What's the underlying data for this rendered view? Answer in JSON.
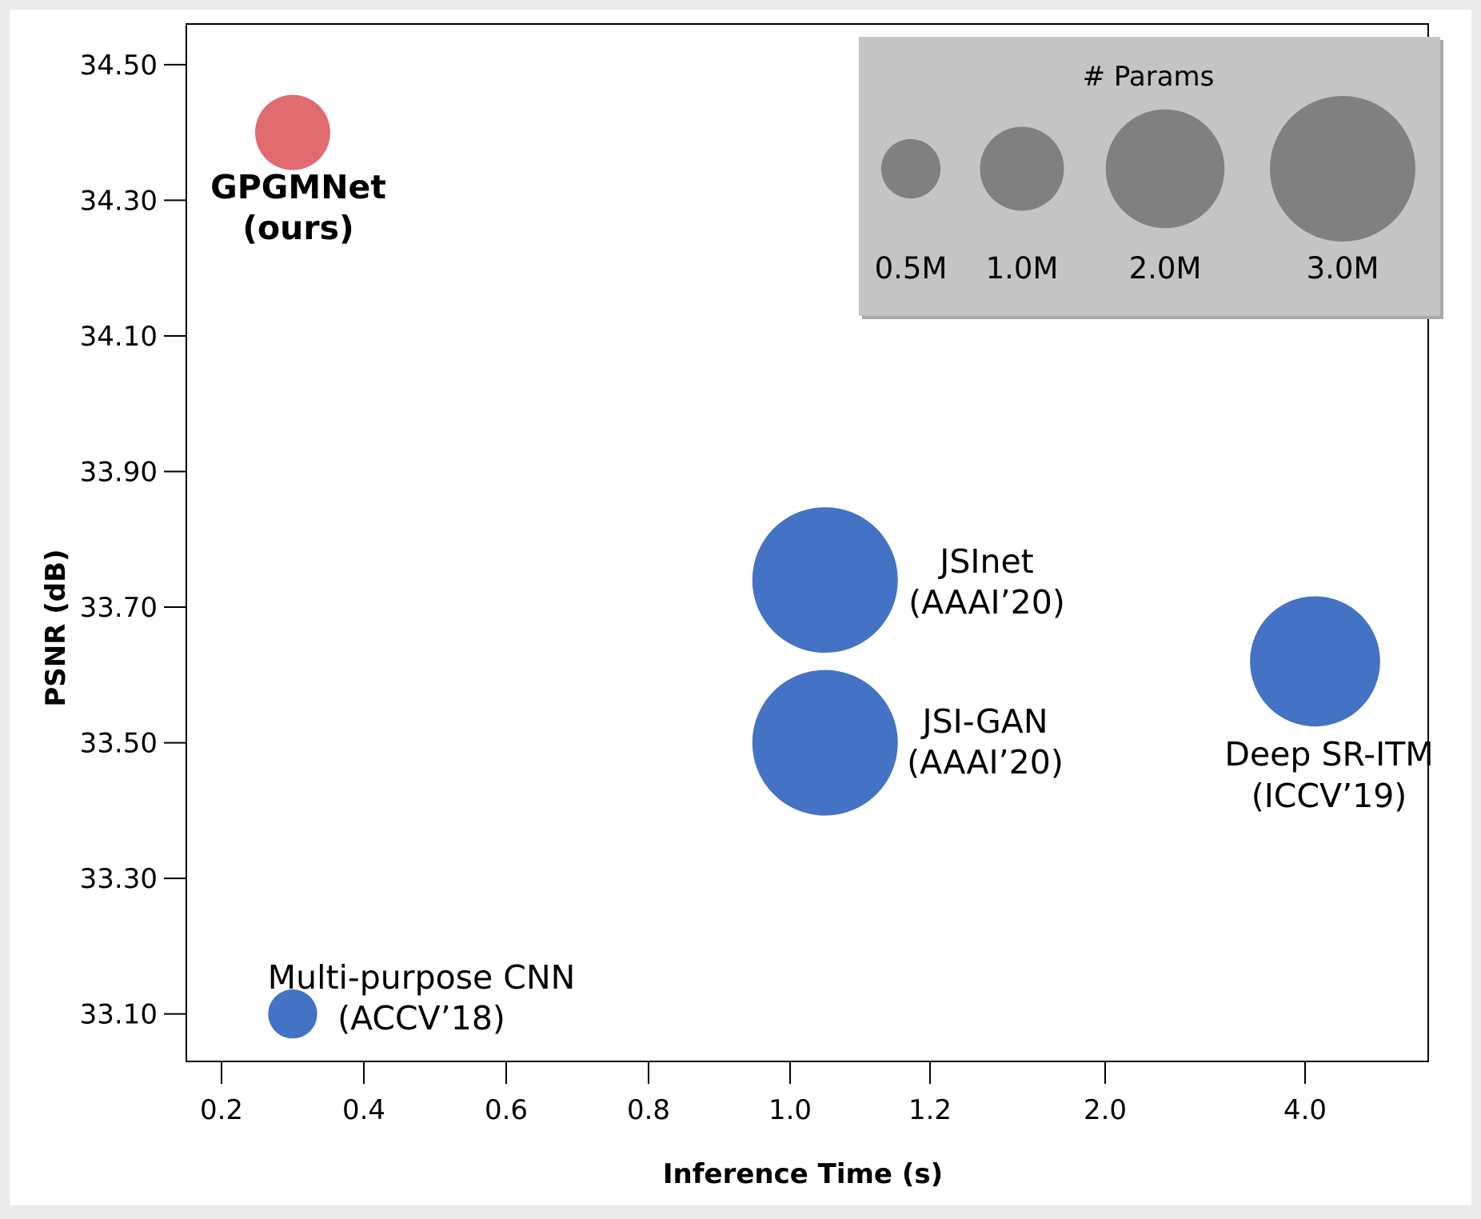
{
  "chart_data": {
    "type": "scatter",
    "xlabel": "Inference Time (s)",
    "ylabel": "PSNR (dB)",
    "x_ticks": [
      "0.2",
      "0.4",
      "0.6",
      "0.8",
      "1.0",
      "1.2",
      "2.0",
      "4.0"
    ],
    "y_ticks": [
      33.1,
      33.3,
      33.5,
      33.7,
      33.9,
      34.1,
      34.3,
      34.5
    ],
    "ylim": [
      33.03,
      34.56
    ],
    "x_scale": "piecewise (uneven spacing of tick labels)",
    "points": [
      {
        "name": "GPGMNet",
        "venue": "(ours)",
        "x": 0.3,
        "y": 34.4,
        "params_m": 0.8,
        "color": "#e06c6f",
        "highlight": true
      },
      {
        "name": "JSInet",
        "venue": "(AAAI’20)",
        "x": 1.05,
        "y": 33.74,
        "params_m": 3.0,
        "color": "#4472c4"
      },
      {
        "name": "JSI-GAN",
        "venue": "(AAAI’20)",
        "x": 1.05,
        "y": 33.5,
        "params_m": 3.0,
        "color": "#4472c4"
      },
      {
        "name": "Deep SR-ITM",
        "venue": "(ICCV’19)",
        "x": 4.1,
        "y": 33.62,
        "params_m": 2.4,
        "color": "#4472c4"
      },
      {
        "name": "Multi-purpose CNN",
        "venue": "(ACCV’18)",
        "x": 0.3,
        "y": 33.1,
        "params_m": 0.34,
        "color": "#4472c4"
      }
    ],
    "legend": {
      "title": "# Params",
      "placement": "top-right",
      "background": "#c4c4c4",
      "bubble_color": "#808080",
      "entries": [
        {
          "label": "0.5M",
          "value": 0.5
        },
        {
          "label": "1.0M",
          "value": 1.0
        },
        {
          "label": "2.0M",
          "value": 2.0
        },
        {
          "label": "3.0M",
          "value": 3.0
        }
      ]
    }
  }
}
